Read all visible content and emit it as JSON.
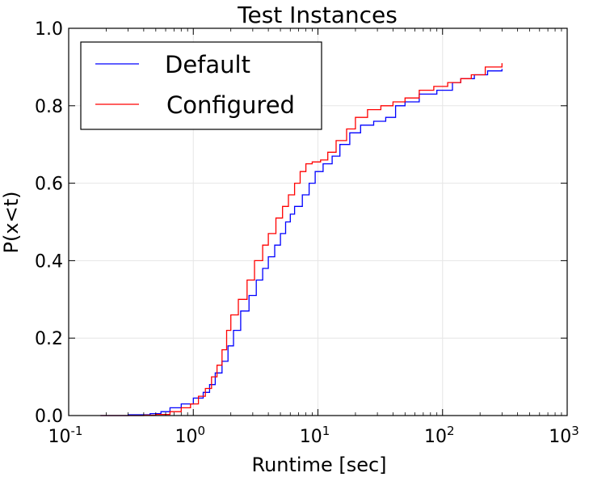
{
  "chart_data": {
    "type": "line",
    "title": "Test Instances",
    "xlabel": "Runtime [sec]",
    "ylabel": "P(x<t)",
    "xscale": "log",
    "xlim": [
      0.1,
      1000
    ],
    "ylim": [
      0.0,
      1.0
    ],
    "grid": true,
    "legend_position": "top-left",
    "x_ticks": [
      {
        "value": 0.1,
        "base": "10",
        "exp": "-1"
      },
      {
        "value": 1,
        "base": "10",
        "exp": "0"
      },
      {
        "value": 10,
        "base": "10",
        "exp": "1"
      },
      {
        "value": 100,
        "base": "10",
        "exp": "2"
      },
      {
        "value": 1000,
        "base": "10",
        "exp": "3"
      }
    ],
    "y_ticks": [
      {
        "value": 0.0,
        "label": "0.0"
      },
      {
        "value": 0.2,
        "label": "0.2"
      },
      {
        "value": 0.4,
        "label": "0.4"
      },
      {
        "value": 0.6,
        "label": "0.6"
      },
      {
        "value": 0.8,
        "label": "0.8"
      },
      {
        "value": 1.0,
        "label": "1.0"
      }
    ],
    "series": [
      {
        "name": "Default",
        "color": "#0000ff",
        "points": [
          [
            0.18,
            0.0
          ],
          [
            0.3,
            0.002
          ],
          [
            0.45,
            0.005
          ],
          [
            0.55,
            0.01
          ],
          [
            0.65,
            0.02
          ],
          [
            0.8,
            0.03
          ],
          [
            1.0,
            0.045
          ],
          [
            1.2,
            0.06
          ],
          [
            1.35,
            0.08
          ],
          [
            1.5,
            0.11
          ],
          [
            1.7,
            0.14
          ],
          [
            1.9,
            0.18
          ],
          [
            2.1,
            0.22
          ],
          [
            2.4,
            0.27
          ],
          [
            2.8,
            0.31
          ],
          [
            3.2,
            0.35
          ],
          [
            3.6,
            0.38
          ],
          [
            4.0,
            0.41
          ],
          [
            4.5,
            0.44
          ],
          [
            5.0,
            0.47
          ],
          [
            5.5,
            0.5
          ],
          [
            6.0,
            0.52
          ],
          [
            6.5,
            0.54
          ],
          [
            7.5,
            0.57
          ],
          [
            8.5,
            0.6
          ],
          [
            9.5,
            0.63
          ],
          [
            11.0,
            0.65
          ],
          [
            13.0,
            0.67
          ],
          [
            15.0,
            0.7
          ],
          [
            18.0,
            0.73
          ],
          [
            22.0,
            0.75
          ],
          [
            28.0,
            0.76
          ],
          [
            35.0,
            0.77
          ],
          [
            42.0,
            0.8
          ],
          [
            50.0,
            0.81
          ],
          [
            65.0,
            0.83
          ],
          [
            90.0,
            0.84
          ],
          [
            120.0,
            0.86
          ],
          [
            140.0,
            0.87
          ],
          [
            180.0,
            0.88
          ],
          [
            230.0,
            0.89
          ],
          [
            300.0,
            0.895
          ]
        ]
      },
      {
        "name": "Configured",
        "color": "#ff0000",
        "points": [
          [
            0.18,
            0.0
          ],
          [
            0.4,
            0.001
          ],
          [
            0.5,
            0.003
          ],
          [
            0.65,
            0.01
          ],
          [
            0.8,
            0.02
          ],
          [
            0.95,
            0.03
          ],
          [
            1.1,
            0.05
          ],
          [
            1.25,
            0.07
          ],
          [
            1.4,
            0.1
          ],
          [
            1.55,
            0.13
          ],
          [
            1.7,
            0.17
          ],
          [
            1.85,
            0.22
          ],
          [
            2.0,
            0.26
          ],
          [
            2.3,
            0.3
          ],
          [
            2.7,
            0.35
          ],
          [
            3.1,
            0.4
          ],
          [
            3.6,
            0.44
          ],
          [
            4.0,
            0.47
          ],
          [
            4.6,
            0.51
          ],
          [
            5.2,
            0.54
          ],
          [
            5.8,
            0.57
          ],
          [
            6.5,
            0.6
          ],
          [
            7.2,
            0.63
          ],
          [
            8.0,
            0.65
          ],
          [
            9.0,
            0.655
          ],
          [
            10.5,
            0.66
          ],
          [
            12.0,
            0.68
          ],
          [
            14.0,
            0.71
          ],
          [
            17.0,
            0.74
          ],
          [
            20.0,
            0.77
          ],
          [
            25.0,
            0.79
          ],
          [
            32.0,
            0.8
          ],
          [
            40.0,
            0.81
          ],
          [
            50.0,
            0.82
          ],
          [
            65.0,
            0.84
          ],
          [
            85.0,
            0.85
          ],
          [
            110.0,
            0.86
          ],
          [
            140.0,
            0.87
          ],
          [
            170.0,
            0.88
          ],
          [
            220.0,
            0.9
          ],
          [
            300.0,
            0.91
          ]
        ]
      }
    ]
  }
}
